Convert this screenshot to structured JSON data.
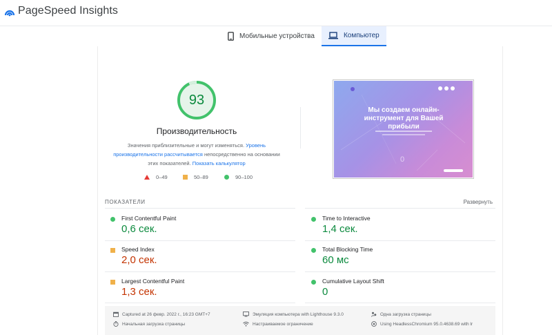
{
  "header": {
    "app_title": "PageSpeed Insights",
    "logo_icon": "pagespeed-logo-icon",
    "logo_color": "#1a73e8"
  },
  "tabs": [
    {
      "label": "Мобильные устройства",
      "icon": "smartphone-icon",
      "active": false
    },
    {
      "label": "Компьютер",
      "icon": "laptop-icon",
      "active": true
    }
  ],
  "performance": {
    "score": "93",
    "title": "Производительность",
    "desc_part1": "Значения приблизительные и могут изменяться. ",
    "desc_link1": "Уровень производительности рассчитывается",
    "desc_part2": " непосредственно на основании этих показателей. ",
    "desc_link2": "Показать калькулятор",
    "gauge_color": "#42c26b",
    "legend": [
      {
        "label": "0–49",
        "icon": "triangle-icon",
        "color": "#e53935"
      },
      {
        "label": "50–89",
        "icon": "square-icon",
        "color": "#f0b14a"
      },
      {
        "label": "90–100",
        "icon": "circle-icon",
        "color": "#42c26b"
      }
    ]
  },
  "screenshot": {
    "headline": "Мы создаем онлайн-инструмент для Вашей прибыли",
    "zero": "0"
  },
  "metrics_header": {
    "title": "ПОКАЗАТЕЛИ",
    "expand": "Развернуть"
  },
  "metrics": [
    {
      "name": "First Contentful Paint",
      "value": "0,6 сек.",
      "status": "good"
    },
    {
      "name": "Time to Interactive",
      "value": "1,4 сек.",
      "status": "good"
    },
    {
      "name": "Speed Index",
      "value": "2,0 сек.",
      "status": "average"
    },
    {
      "name": "Total Blocking Time",
      "value": "60 мс",
      "status": "good"
    },
    {
      "name": "Largest Contentful Paint",
      "value": "1,3 сек.",
      "status": "average"
    },
    {
      "name": "Cumulative Layout Shift",
      "value": "0",
      "status": "good"
    }
  ],
  "footer": [
    {
      "text": "Captured at 26 февр. 2022 г., 16:23 GMT+7",
      "icon": "calendar-icon"
    },
    {
      "text": "Эмуляция компьютера with Lighthouse 9.3.0",
      "icon": "desktop-icon"
    },
    {
      "text": "Одна загрузка страницы",
      "icon": "people-icon"
    },
    {
      "text": "Начальная загрузка страницы",
      "icon": "timer-icon"
    },
    {
      "text": "Настраиваемое ограничение",
      "icon": "wifi-icon"
    },
    {
      "text": "Using HeadlessChromium 95.0.4638.69 with lr",
      "icon": "chromium-icon"
    }
  ]
}
